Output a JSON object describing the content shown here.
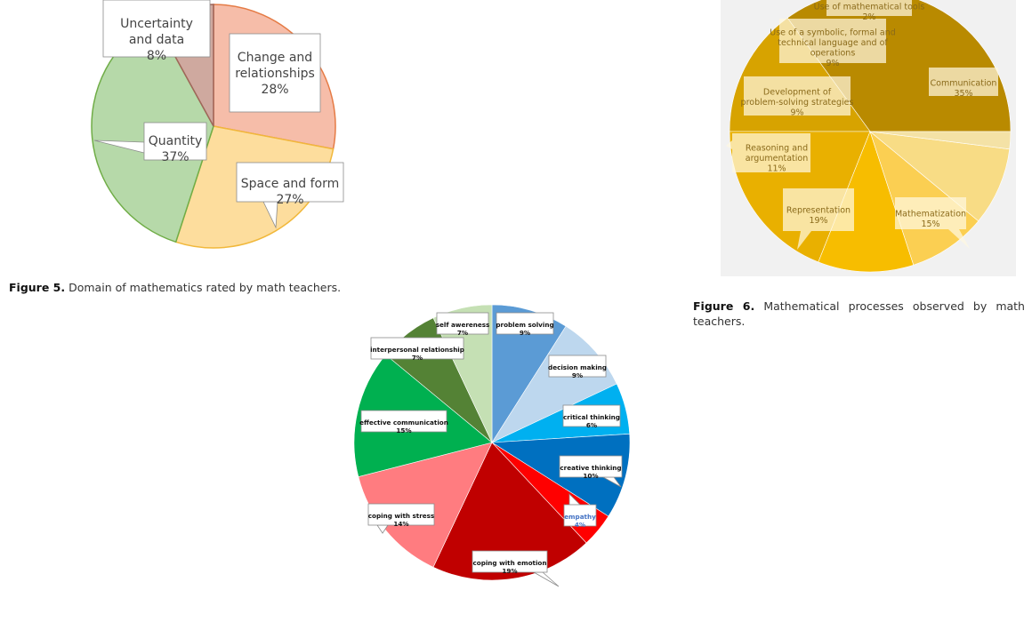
{
  "captions": {
    "fig5": {
      "label": "Figure 5.",
      "text": "Domain of mathematics rated by math teachers."
    },
    "fig6": {
      "label": "Figure 6.",
      "text": "Mathematical processes observed by math teachers."
    }
  },
  "chart_data": [
    {
      "id": "fig5",
      "type": "pie",
      "title": "",
      "slices": [
        {
          "label": "Change and relationships",
          "value": 28,
          "display": "28%",
          "color": "#f4b29a"
        },
        {
          "label": "Space and form",
          "value": 27,
          "display": "27%",
          "color": "#fdd78c"
        },
        {
          "label": "Quantity",
          "value": 37,
          "display": "37%",
          "color": "#a9d29a"
        },
        {
          "label": "Uncertainty and data",
          "value": 8,
          "display": "8%",
          "color": "#c79a8e"
        }
      ]
    },
    {
      "id": "fig6",
      "type": "pie",
      "title": "",
      "slices": [
        {
          "label": "Communication",
          "value": 35,
          "display": "35%",
          "color": "#b98a00"
        },
        {
          "label": "Mathematization",
          "value": 15,
          "display": "15%",
          "color": "#d7a300"
        },
        {
          "label": "Representation",
          "value": 19,
          "display": "19%",
          "color": "#e9b000"
        },
        {
          "label": "Reasoning and argumentation",
          "value": 11,
          "display": "11%",
          "color": "#f7bd00"
        },
        {
          "label": "Development of problem-solving strategies",
          "value": 9,
          "display": "9%",
          "color": "#fbcf52"
        },
        {
          "label": "Use of a symbolic, formal and technical language and of operations",
          "value": 9,
          "display": "9%",
          "color": "#f8dc85"
        },
        {
          "label": "Use of mathematical tools",
          "value": 2,
          "display": "2%",
          "color": "#f4e2a6"
        }
      ]
    },
    {
      "id": "fig7",
      "type": "pie",
      "title": "",
      "slices": [
        {
          "label": "problem solving",
          "value": 9,
          "display": "9%",
          "color": "#5b9bd5"
        },
        {
          "label": "decision making",
          "value": 9,
          "display": "9%",
          "color": "#bdd7ee"
        },
        {
          "label": "critical thinking",
          "value": 6,
          "display": "6%",
          "color": "#00b0f0"
        },
        {
          "label": "creative thinking",
          "value": 10,
          "display": "10%",
          "color": "#0070c0"
        },
        {
          "label": "empathy",
          "value": 4,
          "display": "4%",
          "color": "#ff0000"
        },
        {
          "label": "coping with emotion",
          "value": 19,
          "display": "19%",
          "color": "#c00000"
        },
        {
          "label": "coping with stress",
          "value": 14,
          "display": "14%",
          "color": "#ff7c80"
        },
        {
          "label": "effective communication",
          "value": 15,
          "display": "15%",
          "color": "#00b050"
        },
        {
          "label": "interpersonal relationship",
          "value": 7,
          "display": "7%",
          "color": "#548235"
        },
        {
          "label": "self awereness",
          "value": 7,
          "display": "7%",
          "color": "#c5e0b4"
        }
      ]
    }
  ]
}
